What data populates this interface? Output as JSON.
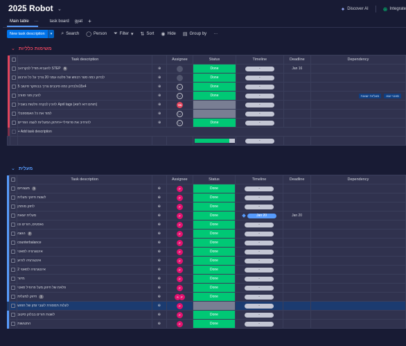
{
  "header": {
    "title": "2025 Robot",
    "tabs": [
      {
        "label": "Main table"
      },
      {
        "label": "task board"
      },
      {
        "label": "gyat"
      }
    ],
    "tab_more": "···",
    "add_tab": "+",
    "discover_ai": "Discover AI",
    "integrate": "Integrate"
  },
  "toolbar": {
    "new_task": "New task description",
    "search": "Search",
    "person": "Person",
    "filter": "Filter",
    "sort": "Sort",
    "hide": "Hide",
    "group_by": "Group by",
    "more": "···"
  },
  "columns": {
    "description": "Task description",
    "assignee": "Assignee",
    "status": "Status",
    "timeline": "Timeline",
    "deadline": "Deadline",
    "dependency": "Dependency"
  },
  "colors": {
    "group1": "#e2445c",
    "group2": "#579bfc",
    "done": "#00c875"
  },
  "groups": [
    {
      "name": "משימות כלליות",
      "add_label": "+ Add task description",
      "rows": [
        {
          "desc": "להעביא מודל לבקרה ב STEP",
          "count": "5",
          "arrow": true,
          "assignee": "ghost",
          "status": "Done",
          "timeline": "-",
          "deadline": "Jan 16",
          "dependency": []
        },
        {
          "desc": "לבדוק כמה סטר רבפש של פלטה עמני 20 צריך על כל הרבוט",
          "count": "",
          "arrow": false,
          "assignee": "ghost",
          "status": "Done",
          "timeline": "-",
          "deadline": "",
          "dependency": []
        },
        {
          "desc": "לבדוק כמה סיבבים צריך בבוחקר סיטוב 5x15x4",
          "count": "",
          "arrow": false,
          "assignee": "empty",
          "status": "Done",
          "timeline": "-",
          "deadline": "",
          "dependency": []
        },
        {
          "desc": "להבין פוני סוורב",
          "count": "",
          "arrow": false,
          "assignee": "empty",
          "status": "Done",
          "timeline": "-",
          "deadline": "",
          "dependency": [
            "מעליות יוצאות",
            "סאטי יוצא"
          ]
        },
        {
          "desc": "להכין לבקרה פלטות בשביל April tags (תוחם דוא ליצא)",
          "count": "",
          "arrow": false,
          "assignee": "YB",
          "status": "",
          "timeline": "-",
          "deadline": "",
          "dependency": []
        },
        {
          "desc": "למוד את כל האמספבלי",
          "count": "",
          "arrow": false,
          "assignee": "empty",
          "status": "",
          "timeline": "-",
          "deadline": "",
          "dependency": []
        },
        {
          "desc": "להרחיב את פרופיליי+חיתוק המעליות לעצה הפריים",
          "count": "",
          "arrow": false,
          "assignee": "empty",
          "status": "Done",
          "timeline": "-",
          "deadline": "",
          "dependency": []
        }
      ],
      "summary_timeline": "-"
    },
    {
      "name": "מעלית",
      "rows": [
        {
          "desc": "מעצורים",
          "count": "1",
          "arrow": true,
          "assignee": "P",
          "status": "Done",
          "timeline": "-",
          "deadline": "",
          "dependency": [],
          "hl": false
        },
        {
          "desc": "לשנות חיזוקי מעלית",
          "count": "",
          "arrow": false,
          "assignee": "P",
          "status": "Done",
          "timeline": "-",
          "deadline": "",
          "dependency": [],
          "hl": false
        },
        {
          "desc": "לחזק מותחן",
          "count": "",
          "arrow": false,
          "assignee": "P",
          "status": "Done",
          "timeline": "-",
          "deadline": "",
          "dependency": [],
          "hl": false
        },
        {
          "desc": "מעלית יוצאת",
          "count": "",
          "arrow": false,
          "assignee": "P",
          "status": "Done",
          "timeline": "Jan 20",
          "deadline": "Jan 20",
          "dependency": [],
          "hl": false
        },
        {
          "desc": "נאסטים, חורים וכו",
          "count": "",
          "arrow": false,
          "assignee": "P",
          "status": "Done",
          "timeline": "-",
          "deadline": "",
          "dependency": [],
          "hl": false
        },
        {
          "desc": "הגעה",
          "count": "2",
          "arrow": true,
          "assignee": "P",
          "status": "Done",
          "timeline": "-",
          "deadline": "",
          "dependency": [],
          "hl": false
        },
        {
          "desc": "counterbalance",
          "count": "",
          "arrow": false,
          "assignee": "P",
          "status": "Done",
          "timeline": "-",
          "deadline": "",
          "dependency": [],
          "hl": false
        },
        {
          "desc": "אינטגרציה לסאטי",
          "count": "",
          "arrow": false,
          "assignee": "P",
          "status": "Done",
          "timeline": "-",
          "deadline": "",
          "dependency": [],
          "hl": false
        },
        {
          "desc": "אינטגרציה לזרוע",
          "count": "",
          "arrow": false,
          "assignee": "P",
          "status": "Done",
          "timeline": "-",
          "deadline": "",
          "dependency": [],
          "hl": false
        },
        {
          "desc": "אינטגרציה לסאטי 2",
          "count": "",
          "arrow": false,
          "assignee": "P",
          "status": "Done",
          "timeline": "-",
          "deadline": "",
          "dependency": [],
          "hl": false
        },
        {
          "desc": "מיזור",
          "count": "",
          "arrow": false,
          "assignee": "P",
          "status": "Done",
          "timeline": "-",
          "deadline": "",
          "dependency": [],
          "hl": false
        },
        {
          "desc": "פלאת של חיזוק מעל פרופיל סאטי",
          "count": "",
          "arrow": false,
          "assignee": "P",
          "status": "Done",
          "timeline": "-",
          "deadline": "",
          "dependency": [],
          "hl": false
        },
        {
          "desc": "חיזוק למעלית",
          "count": "1",
          "arrow": true,
          "assignee": "SP",
          "status": "Done",
          "timeline": "-",
          "deadline": "",
          "dependency": [],
          "hl": false
        },
        {
          "desc": "לעלות תמסורת לעובי זמזן של חפוש",
          "count": "",
          "arrow": false,
          "assignee": "P",
          "status": "",
          "timeline": "-",
          "deadline": "",
          "dependency": [],
          "hl": true
        },
        {
          "desc": "לשנות חורים בבלוק סיטוב",
          "count": "",
          "arrow": false,
          "assignee": "P",
          "status": "Done",
          "timeline": "-",
          "deadline": "",
          "dependency": [],
          "hl": false
        },
        {
          "desc": "התנגשות",
          "count": "",
          "arrow": false,
          "assignee": "P",
          "status": "Done",
          "timeline": "-",
          "deadline": "",
          "dependency": [],
          "hl": false
        }
      ]
    }
  ]
}
